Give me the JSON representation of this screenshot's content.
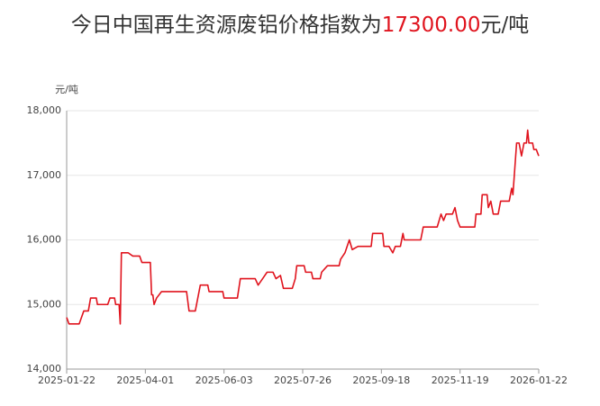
{
  "chart_data": {
    "type": "line",
    "title": "今日中国再生资源废铝价格指数为",
    "title_value": "17300.00",
    "title_unit": "元/吨",
    "y_label": "元/吨",
    "grid": true,
    "ylim": [
      14000,
      18000
    ],
    "yticks": [
      {
        "value": 14000,
        "label": "14,000"
      },
      {
        "value": 15000,
        "label": "15,000"
      },
      {
        "value": 16000,
        "label": "16,000"
      },
      {
        "value": 17000,
        "label": "17,000"
      },
      {
        "value": 18000,
        "label": "18,000"
      }
    ],
    "xlim": [
      "2025-01-22",
      "2026-01-22"
    ],
    "xticks": [
      "2025-01-22",
      "2025-04-01",
      "2025-06-03",
      "2025-07-26",
      "2025-09-18",
      "2025-11-19",
      "2026-01-22"
    ],
    "x": [
      "2025-01-22",
      "2025-01-24",
      "2025-02-02",
      "2025-02-04",
      "2025-02-06",
      "2025-02-10",
      "2025-02-12",
      "2025-02-17",
      "2025-02-18",
      "2025-02-27",
      "2025-03-01",
      "2025-03-05",
      "2025-03-06",
      "2025-03-09",
      "2025-03-10",
      "2025-03-11",
      "2025-03-17",
      "2025-03-21",
      "2025-03-27",
      "2025-03-29",
      "2025-04-05",
      "2025-04-06",
      "2025-04-07",
      "2025-04-08",
      "2025-04-10",
      "2025-04-14",
      "2025-05-04",
      "2025-05-06",
      "2025-05-11",
      "2025-05-15",
      "2025-05-21",
      "2025-05-22",
      "2025-06-02",
      "2025-06-03",
      "2025-06-12",
      "2025-06-14",
      "2025-06-24",
      "2025-06-26",
      "2025-06-29",
      "2025-07-02",
      "2025-07-06",
      "2025-07-08",
      "2025-07-11",
      "2025-07-13",
      "2025-07-19",
      "2025-07-21",
      "2025-07-22",
      "2025-07-27",
      "2025-07-28",
      "2025-08-01",
      "2025-08-02",
      "2025-08-07",
      "2025-08-08",
      "2025-08-12",
      "2025-08-20",
      "2025-08-21",
      "2025-08-24",
      "2025-08-27",
      "2025-08-29",
      "2025-09-02",
      "2025-09-11",
      "2025-09-12",
      "2025-09-19",
      "2025-09-20",
      "2025-09-24",
      "2025-09-27",
      "2025-09-29",
      "2025-10-03",
      "2025-10-05",
      "2025-10-06",
      "2025-10-19",
      "2025-10-21",
      "2025-11-01",
      "2025-11-04",
      "2025-11-06",
      "2025-11-08",
      "2025-11-13",
      "2025-11-15",
      "2025-11-17",
      "2025-11-19",
      "2025-12-01",
      "2025-12-02",
      "2025-12-06",
      "2025-12-07",
      "2025-12-11",
      "2025-12-12",
      "2025-12-14",
      "2025-12-16",
      "2025-12-20",
      "2025-12-21",
      "2025-12-22",
      "2025-12-29",
      "2025-12-30",
      "2025-12-31",
      "2026-01-01",
      "2026-01-04",
      "2026-01-06",
      "2026-01-08",
      "2026-01-10",
      "2026-01-12",
      "2026-01-13",
      "2026-01-14",
      "2026-01-17",
      "2026-01-18",
      "2026-01-20",
      "2026-01-22"
    ],
    "series": [
      {
        "name": "废铝价格指数",
        "color": "#e0141e",
        "values": [
          14800,
          14700,
          14700,
          14800,
          14900,
          14900,
          15100,
          15100,
          15000,
          15000,
          15100,
          15100,
          15000,
          15000,
          14700,
          15800,
          15800,
          15750,
          15750,
          15650,
          15650,
          15150,
          15150,
          15000,
          15100,
          15200,
          15200,
          14900,
          14900,
          15300,
          15300,
          15200,
          15200,
          15100,
          15100,
          15400,
          15400,
          15300,
          15400,
          15500,
          15500,
          15400,
          15450,
          15250,
          15250,
          15400,
          15600,
          15600,
          15500,
          15500,
          15400,
          15400,
          15500,
          15600,
          15600,
          15700,
          15800,
          16000,
          15850,
          15900,
          15900,
          16100,
          16100,
          15900,
          15900,
          15800,
          15900,
          15900,
          16100,
          16000,
          16000,
          16200,
          16200,
          16400,
          16300,
          16400,
          16400,
          16500,
          16300,
          16200,
          16200,
          16400,
          16400,
          16700,
          16700,
          16500,
          16600,
          16400,
          16400,
          16500,
          16600,
          16600,
          16700,
          16800,
          16700,
          17500,
          17500,
          17300,
          17500,
          17500,
          17700,
          17500,
          17500,
          17400,
          17400,
          17300
        ]
      }
    ]
  }
}
